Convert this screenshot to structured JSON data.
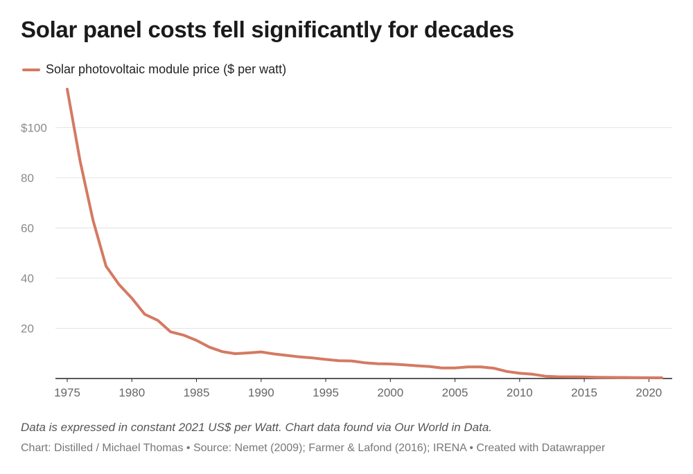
{
  "title": "Solar panel costs fell significantly for decades",
  "colors": {
    "line": "#d47a62",
    "grid": "#e3e3e3",
    "axis": "#222222",
    "tick_label": "#8a8a8a"
  },
  "chart_data": {
    "type": "line",
    "title": "Solar panel costs fell significantly for decades",
    "xlabel": "",
    "ylabel": "",
    "xlim": [
      1975,
      2021
    ],
    "ylim": [
      0,
      115
    ],
    "grid": true,
    "legend_position": "top-left",
    "y_ticks": [
      {
        "value": 20,
        "label": "20"
      },
      {
        "value": 40,
        "label": "40"
      },
      {
        "value": 60,
        "label": "60"
      },
      {
        "value": 80,
        "label": "80"
      },
      {
        "value": 100,
        "label": "$100"
      }
    ],
    "x_ticks": [
      {
        "value": 1975,
        "label": "1975"
      },
      {
        "value": 1980,
        "label": "1980"
      },
      {
        "value": 1985,
        "label": "1985"
      },
      {
        "value": 1990,
        "label": "1990"
      },
      {
        "value": 1995,
        "label": "1995"
      },
      {
        "value": 2000,
        "label": "2000"
      },
      {
        "value": 2005,
        "label": "2005"
      },
      {
        "value": 2010,
        "label": "2010"
      },
      {
        "value": 2015,
        "label": "2015"
      },
      {
        "value": 2020,
        "label": "2020"
      }
    ],
    "series": [
      {
        "name": "Solar photovoltaic module price ($ per watt)",
        "x": [
          1975,
          1976,
          1977,
          1978,
          1979,
          1980,
          1981,
          1982,
          1983,
          1984,
          1985,
          1986,
          1987,
          1988,
          1989,
          1990,
          1991,
          1992,
          1993,
          1994,
          1995,
          1996,
          1997,
          1998,
          1999,
          2000,
          2001,
          2002,
          2003,
          2004,
          2005,
          2006,
          2007,
          2008,
          2009,
          2010,
          2011,
          2012,
          2013,
          2014,
          2015,
          2016,
          2017,
          2018,
          2019,
          2020,
          2021
        ],
        "values": [
          115.3,
          86.5,
          63.0,
          44.8,
          37.5,
          32.0,
          25.6,
          23.2,
          18.6,
          17.3,
          15.2,
          12.5,
          10.7,
          9.9,
          10.2,
          10.6,
          9.8,
          9.2,
          8.6,
          8.2,
          7.6,
          7.1,
          7.0,
          6.3,
          5.9,
          5.8,
          5.5,
          5.1,
          4.8,
          4.2,
          4.2,
          4.6,
          4.6,
          4.1,
          2.8,
          2.1,
          1.7,
          0.9,
          0.7,
          0.65,
          0.6,
          0.5,
          0.45,
          0.4,
          0.35,
          0.3,
          0.27
        ]
      }
    ]
  },
  "note": "Data is expressed in constant 2021 US$ per Watt. Chart data found via Our World in Data.",
  "footer": {
    "chart_credit": "Chart: Distilled / Michael Thomas",
    "source": "Source: Nemet (2009); Farmer & Lafond (2016); IRENA",
    "tool": "Created with Datawrapper",
    "separator": " • "
  }
}
